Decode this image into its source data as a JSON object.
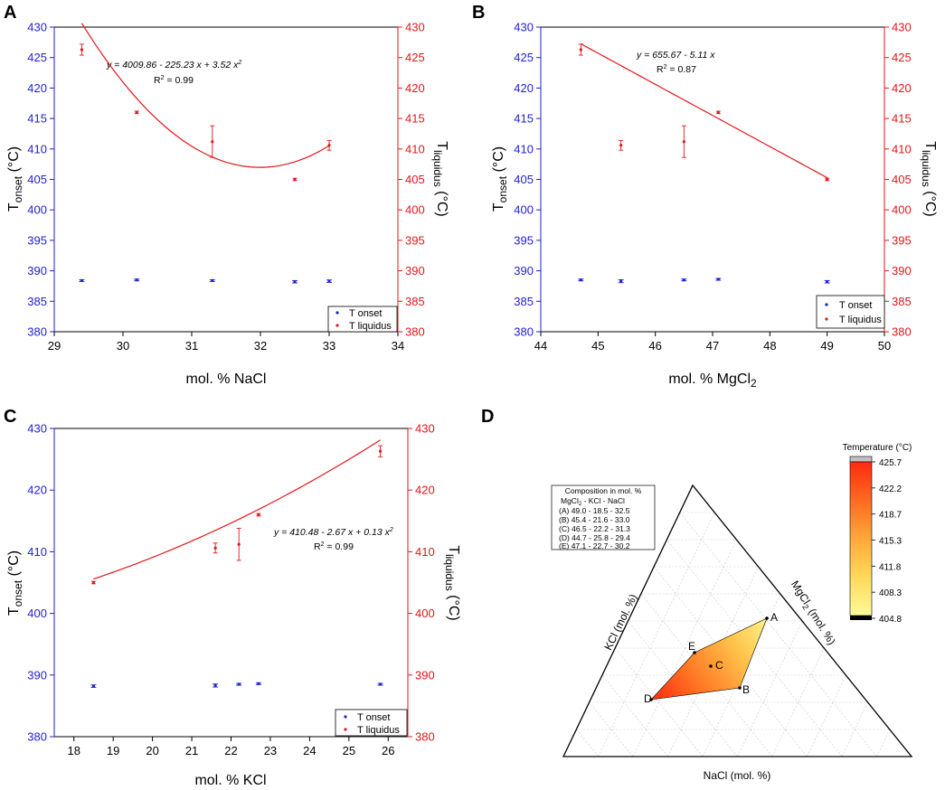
{
  "colors": {
    "onset": "#1f1fd1",
    "liquidus": "#e3161b",
    "axis": "#000000"
  },
  "chart_data": [
    {
      "panel": "A",
      "type": "scatter",
      "xlabel": "mol. % NaCl",
      "ylabel_left": {
        "main": "T",
        "sub": "onset",
        "unit": " (°C)"
      },
      "ylabel_right": {
        "main": "T",
        "sub": "liquidus",
        "unit": " (°C)"
      },
      "xlim": [
        29,
        34
      ],
      "ylim": [
        380,
        430
      ],
      "xticks": [
        "29",
        "30",
        "31",
        "32",
        "33",
        "34"
      ],
      "yticks": [
        "380",
        "385",
        "390",
        "395",
        "400",
        "405",
        "410",
        "415",
        "420",
        "425",
        "430"
      ],
      "series": [
        {
          "name": "T onset",
          "x": [
            29.4,
            30.2,
            31.3,
            32.5,
            33.0
          ],
          "y": [
            388.4,
            388.5,
            388.4,
            388.2,
            388.3
          ],
          "err": [
            0.15,
            0.15,
            0.15,
            0.2,
            0.2
          ]
        },
        {
          "name": "T liquidus",
          "x": [
            29.4,
            30.2,
            31.3,
            32.5,
            33.0
          ],
          "y": [
            426.3,
            416.0,
            411.2,
            405.0,
            410.6
          ],
          "err": [
            0.9,
            0.2,
            2.6,
            0.2,
            0.8
          ]
        }
      ],
      "fit": {
        "coef": [
          4009.86,
          -225.23,
          3.52
        ],
        "range": [
          29.4,
          33.0
        ]
      },
      "equation": "y = 4009.86 - 225.23 x + 3.52 x",
      "equation_sup": "2",
      "r2_value": " = 0.99"
    },
    {
      "panel": "B",
      "type": "scatter",
      "xlabel": "mol. % MgCl",
      "xlabel_sub": "2",
      "ylabel_left": {
        "main": "T",
        "sub": "onset",
        "unit": " (°C)"
      },
      "ylabel_right": {
        "main": "T",
        "sub": "liquidus",
        "unit": " (°C)"
      },
      "xlim": [
        44,
        50
      ],
      "ylim": [
        380,
        430
      ],
      "xticks": [
        "44",
        "45",
        "46",
        "47",
        "48",
        "49",
        "50"
      ],
      "yticks": [
        "380",
        "385",
        "390",
        "395",
        "400",
        "405",
        "410",
        "415",
        "420",
        "425",
        "430"
      ],
      "series": [
        {
          "name": "T onset",
          "x": [
            44.7,
            45.4,
            46.5,
            47.1,
            49.0
          ],
          "y": [
            388.5,
            388.3,
            388.5,
            388.6,
            388.2
          ],
          "err": [
            0.15,
            0.25,
            0.15,
            0.15,
            0.2
          ]
        },
        {
          "name": "T liquidus",
          "x": [
            44.7,
            45.4,
            46.5,
            47.1,
            49.0
          ],
          "y": [
            426.3,
            410.6,
            411.2,
            416.0,
            405.0
          ],
          "err": [
            0.9,
            0.8,
            2.6,
            0.2,
            0.2
          ]
        }
      ],
      "fit": {
        "coef": [
          655.67,
          -5.11,
          0
        ],
        "range": [
          44.7,
          49.0
        ]
      },
      "equation": "y = 655.67 - 5.11 x",
      "equation_sup": "",
      "r2_value": " = 0.87"
    },
    {
      "panel": "C",
      "type": "scatter",
      "xlabel": "mol. % KCl",
      "ylabel_left": {
        "main": "T",
        "sub": "onset",
        "unit": " (°C)"
      },
      "ylabel_right": {
        "main": "T",
        "sub": "liquidus",
        "unit": " (°C)"
      },
      "xlim": [
        17.5,
        26.5
      ],
      "ylim": [
        380,
        430
      ],
      "xticks": [
        "18",
        "19",
        "20",
        "21",
        "22",
        "23",
        "24",
        "25",
        "26"
      ],
      "yticks": [
        "380",
        "390",
        "400",
        "410",
        "420",
        "430"
      ],
      "series": [
        {
          "name": "T onset",
          "x": [
            18.5,
            21.6,
            22.2,
            22.7,
            25.8
          ],
          "y": [
            388.2,
            388.3,
            388.5,
            388.6,
            388.5
          ],
          "err": [
            0.2,
            0.25,
            0.15,
            0.15,
            0.15
          ]
        },
        {
          "name": "T liquidus",
          "x": [
            18.5,
            21.6,
            22.2,
            22.7,
            25.8
          ],
          "y": [
            405.0,
            410.6,
            411.2,
            416.0,
            426.3
          ],
          "err": [
            0.2,
            0.8,
            2.6,
            0.2,
            0.9
          ]
        }
      ],
      "fit": {
        "coef": [
          410.48,
          -2.67,
          0.13
        ],
        "range": [
          18.5,
          25.8
        ]
      },
      "equation": "y = 410.48 - 2.67 x + 0.13 x",
      "equation_sup": "2",
      "r2_value": " = 0.99"
    },
    {
      "panel": "D",
      "type": "ternary",
      "axis_labels": {
        "bottom": "NaCl (mol. %)",
        "left": "KCl (mol. %)",
        "right_main": "MgCl",
        "right_sub": "2",
        "right_unit": " (mol. %)"
      },
      "table_title": "Composition in mol. %",
      "table_header": {
        "mg": "MgCl",
        "mg_sub": "2",
        "rest": "   -   KCl   - NaCl"
      },
      "table_rows": [
        "(A) 49.0  - 18.5  - 32.5",
        "(B) 45.4  - 21.6  - 33.0",
        "(C) 46.5  - 22.2  - 31.3",
        "(D) 44.7  - 25.8  - 29.4",
        "(E) 47.1  - 22.7  - 30.2"
      ],
      "points": [
        {
          "label": "A",
          "mgcl2": 49.0,
          "kcl": 18.5,
          "nacl": 32.5,
          "temp": 404.8
        },
        {
          "label": "B",
          "mgcl2": 45.4,
          "kcl": 21.6,
          "nacl": 33.0,
          "temp": 410.6
        },
        {
          "label": "C",
          "mgcl2": 46.5,
          "kcl": 22.2,
          "nacl": 31.3,
          "temp": 411.2
        },
        {
          "label": "D",
          "mgcl2": 44.7,
          "kcl": 25.8,
          "nacl": 29.4,
          "temp": 425.7
        },
        {
          "label": "E",
          "mgcl2": 47.1,
          "kcl": 22.7,
          "nacl": 30.2,
          "temp": 416.0
        }
      ],
      "colorbar": {
        "title": "Temperature (°C)",
        "ticks": [
          "425.7",
          "422.2",
          "418.7",
          "415.3",
          "411.8",
          "408.3",
          "404.8"
        ],
        "stops": [
          "#ff2a10",
          "#ff6a20",
          "#ffa83a",
          "#ffd95a",
          "#fffa9a"
        ]
      }
    }
  ],
  "panel_labels": [
    "A",
    "B",
    "C",
    "D"
  ],
  "legend": {
    "onset": "T onset",
    "liquidus": "T liquidus"
  },
  "r2_label": "R",
  "r2_sup": "2"
}
